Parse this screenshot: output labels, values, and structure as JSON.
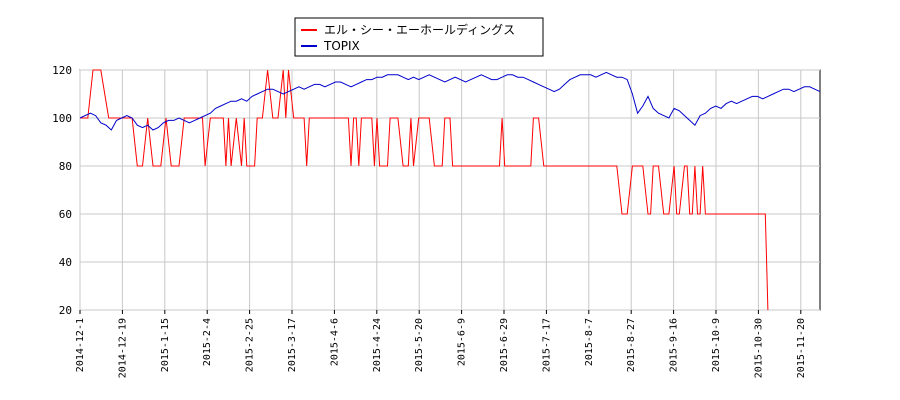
{
  "chart_data": {
    "type": "line",
    "legend_position": "top-center",
    "grid": true,
    "ylim": [
      20,
      120
    ],
    "yticks": [
      20,
      40,
      60,
      80,
      100,
      120
    ],
    "xticks": [
      "2014-12-1",
      "2014-12-19",
      "2015-1-15",
      "2015-2-4",
      "2015-2-25",
      "2015-3-17",
      "2015-4-6",
      "2015-4-24",
      "2015-5-20",
      "2015-6-9",
      "2015-6-29",
      "2015-7-17",
      "2015-8-7",
      "2015-8-27",
      "2015-9-16",
      "2015-10-9",
      "2015-10-30",
      "2015-11-20"
    ],
    "series": [
      {
        "name": "エル・シー・エーホールディングス",
        "color": "#ff0000",
        "points": [
          [
            0,
            100
          ],
          [
            1.5,
            100
          ],
          [
            2.5,
            120
          ],
          [
            4,
            120
          ],
          [
            5.5,
            100
          ],
          [
            10,
            100
          ],
          [
            11,
            80
          ],
          [
            12,
            80
          ],
          [
            13,
            100
          ],
          [
            14,
            80
          ],
          [
            15.5,
            80
          ],
          [
            16.5,
            100
          ],
          [
            17.5,
            80
          ],
          [
            19,
            80
          ],
          [
            20,
            100
          ],
          [
            23.5,
            100
          ],
          [
            24,
            80
          ],
          [
            25,
            100
          ],
          [
            27.5,
            100
          ],
          [
            28,
            80
          ],
          [
            28.5,
            100
          ],
          [
            29,
            80
          ],
          [
            30,
            100
          ],
          [
            31,
            80
          ],
          [
            31.5,
            100
          ],
          [
            32,
            80
          ],
          [
            33.5,
            80
          ],
          [
            34,
            100
          ],
          [
            35,
            100
          ],
          [
            36,
            120
          ],
          [
            37,
            100
          ],
          [
            38,
            100
          ],
          [
            39,
            120
          ],
          [
            39.5,
            100
          ],
          [
            40,
            120
          ],
          [
            41,
            100
          ],
          [
            43,
            100
          ],
          [
            43.5,
            80
          ],
          [
            44,
            100
          ],
          [
            51.5,
            100
          ],
          [
            52,
            80
          ],
          [
            52.5,
            100
          ],
          [
            53,
            100
          ],
          [
            53.5,
            80
          ],
          [
            54,
            100
          ],
          [
            56,
            100
          ],
          [
            56.5,
            80
          ],
          [
            57,
            100
          ],
          [
            57.5,
            80
          ],
          [
            59,
            80
          ],
          [
            59.5,
            100
          ],
          [
            61,
            100
          ],
          [
            62,
            80
          ],
          [
            63,
            80
          ],
          [
            63.5,
            100
          ],
          [
            64,
            80
          ],
          [
            65,
            100
          ],
          [
            67,
            100
          ],
          [
            68,
            80
          ],
          [
            69.5,
            80
          ],
          [
            70,
            100
          ],
          [
            71,
            100
          ],
          [
            71.5,
            80
          ],
          [
            80.5,
            80
          ],
          [
            81,
            100
          ],
          [
            81.5,
            80
          ],
          [
            86.5,
            80
          ],
          [
            87,
            100
          ],
          [
            88,
            100
          ],
          [
            89,
            80
          ],
          [
            103,
            80
          ],
          [
            104,
            60
          ],
          [
            105,
            60
          ],
          [
            106,
            80
          ],
          [
            108,
            80
          ],
          [
            109,
            60
          ],
          [
            109.5,
            60
          ],
          [
            110,
            80
          ],
          [
            111,
            80
          ],
          [
            112,
            60
          ],
          [
            113,
            60
          ],
          [
            114,
            80
          ],
          [
            114.5,
            60
          ],
          [
            115,
            60
          ],
          [
            116,
            80
          ],
          [
            116.5,
            80
          ],
          [
            117,
            60
          ],
          [
            117.5,
            60
          ],
          [
            118,
            80
          ],
          [
            118.5,
            60
          ],
          [
            119,
            60
          ],
          [
            119.5,
            80
          ],
          [
            120,
            60
          ],
          [
            130,
            60
          ],
          [
            131.5,
            60
          ],
          [
            132,
            20
          ]
        ]
      },
      {
        "name": "TOPIX",
        "color": "#0000cc",
        "points": [
          [
            0,
            100
          ],
          [
            2,
            102
          ],
          [
            3,
            101
          ],
          [
            4,
            98
          ],
          [
            5,
            97
          ],
          [
            6,
            95
          ],
          [
            7,
            99
          ],
          [
            8,
            100
          ],
          [
            9,
            101
          ],
          [
            10,
            100
          ],
          [
            11,
            97
          ],
          [
            12,
            96
          ],
          [
            13,
            97
          ],
          [
            14,
            95
          ],
          [
            15,
            96
          ],
          [
            16,
            98
          ],
          [
            17,
            99
          ],
          [
            18,
            99
          ],
          [
            19,
            100
          ],
          [
            20,
            99
          ],
          [
            21,
            98
          ],
          [
            22,
            99
          ],
          [
            23,
            100
          ],
          [
            24,
            101
          ],
          [
            25,
            102
          ],
          [
            26,
            104
          ],
          [
            27,
            105
          ],
          [
            28,
            106
          ],
          [
            29,
            107
          ],
          [
            30,
            107
          ],
          [
            31,
            108
          ],
          [
            32,
            107
          ],
          [
            33,
            109
          ],
          [
            34,
            110
          ],
          [
            35,
            111
          ],
          [
            36,
            112
          ],
          [
            37,
            112
          ],
          [
            38,
            111
          ],
          [
            39,
            110
          ],
          [
            40,
            111
          ],
          [
            41,
            112
          ],
          [
            42,
            113
          ],
          [
            43,
            112
          ],
          [
            44,
            113
          ],
          [
            45,
            114
          ],
          [
            46,
            114
          ],
          [
            47,
            113
          ],
          [
            48,
            114
          ],
          [
            49,
            115
          ],
          [
            50,
            115
          ],
          [
            51,
            114
          ],
          [
            52,
            113
          ],
          [
            53,
            114
          ],
          [
            54,
            115
          ],
          [
            55,
            116
          ],
          [
            56,
            116
          ],
          [
            57,
            117
          ],
          [
            58,
            117
          ],
          [
            59,
            118
          ],
          [
            60,
            118
          ],
          [
            61,
            118
          ],
          [
            62,
            117
          ],
          [
            63,
            116
          ],
          [
            64,
            117
          ],
          [
            65,
            116
          ],
          [
            66,
            117
          ],
          [
            67,
            118
          ],
          [
            68,
            117
          ],
          [
            69,
            116
          ],
          [
            70,
            115
          ],
          [
            71,
            116
          ],
          [
            72,
            117
          ],
          [
            73,
            116
          ],
          [
            74,
            115
          ],
          [
            75,
            116
          ],
          [
            76,
            117
          ],
          [
            77,
            118
          ],
          [
            78,
            117
          ],
          [
            79,
            116
          ],
          [
            80,
            116
          ],
          [
            81,
            117
          ],
          [
            82,
            118
          ],
          [
            83,
            118
          ],
          [
            84,
            117
          ],
          [
            85,
            117
          ],
          [
            86,
            116
          ],
          [
            87,
            115
          ],
          [
            88,
            114
          ],
          [
            89,
            113
          ],
          [
            90,
            112
          ],
          [
            91,
            111
          ],
          [
            92,
            112
          ],
          [
            93,
            114
          ],
          [
            94,
            116
          ],
          [
            95,
            117
          ],
          [
            96,
            118
          ],
          [
            97,
            118
          ],
          [
            98,
            118
          ],
          [
            99,
            117
          ],
          [
            100,
            118
          ],
          [
            101,
            119
          ],
          [
            102,
            118
          ],
          [
            103,
            117
          ],
          [
            104,
            117
          ],
          [
            105,
            116
          ],
          [
            106,
            110
          ],
          [
            107,
            102
          ],
          [
            108,
            105
          ],
          [
            109,
            109
          ],
          [
            110,
            104
          ],
          [
            111,
            102
          ],
          [
            112,
            101
          ],
          [
            113,
            100
          ],
          [
            114,
            104
          ],
          [
            115,
            103
          ],
          [
            116,
            101
          ],
          [
            117,
            99
          ],
          [
            118,
            97
          ],
          [
            119,
            101
          ],
          [
            120,
            102
          ],
          [
            121,
            104
          ],
          [
            122,
            105
          ],
          [
            123,
            104
          ],
          [
            124,
            106
          ],
          [
            125,
            107
          ],
          [
            126,
            106
          ],
          [
            127,
            107
          ],
          [
            128,
            108
          ],
          [
            129,
            109
          ],
          [
            130,
            109
          ],
          [
            131,
            108
          ],
          [
            132,
            109
          ],
          [
            133,
            110
          ],
          [
            134,
            111
          ],
          [
            135,
            112
          ],
          [
            136,
            112
          ],
          [
            137,
            111
          ],
          [
            138,
            112
          ],
          [
            139,
            113
          ],
          [
            140,
            113
          ],
          [
            141,
            112
          ],
          [
            142,
            111
          ]
        ]
      }
    ],
    "x_domain": [
      0,
      142
    ]
  }
}
